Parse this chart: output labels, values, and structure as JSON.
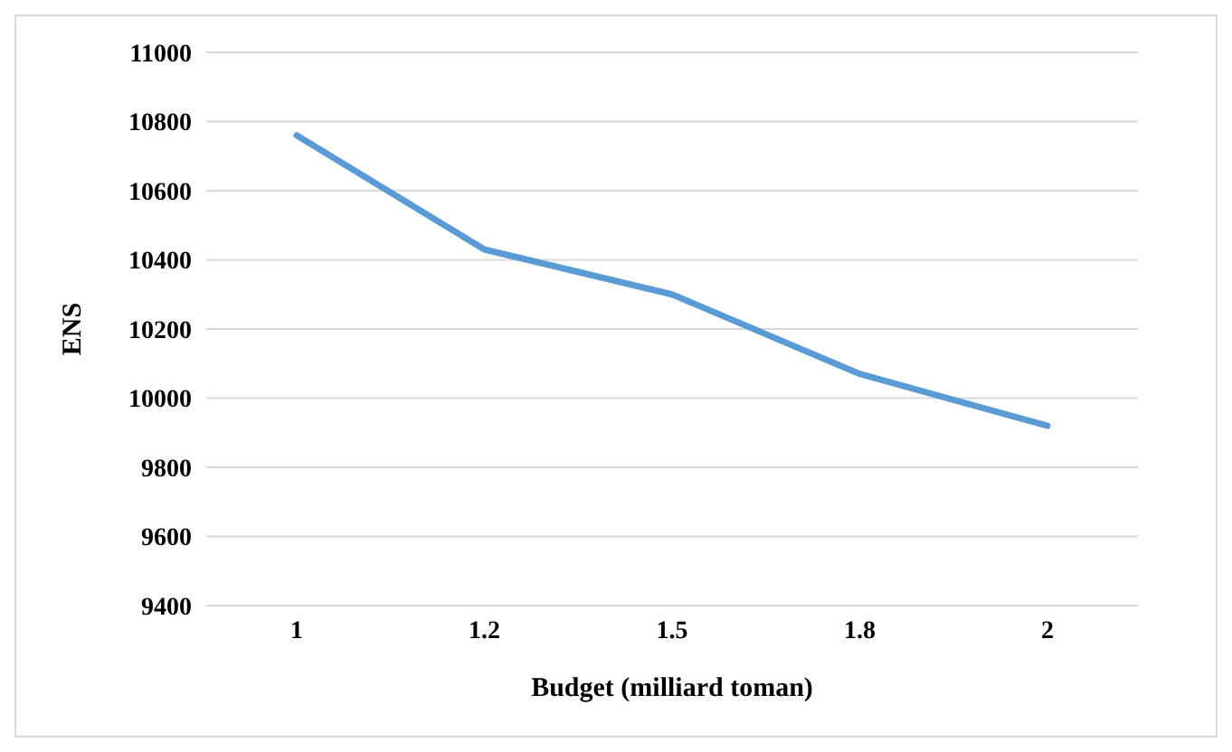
{
  "chart_data": {
    "type": "line",
    "xlabel": "Budget (milliard toman)",
    "ylabel": "ENS",
    "categories": [
      "1",
      "1.2",
      "1.5",
      "1.8",
      "2"
    ],
    "series": [
      {
        "color": "#5b9bd5",
        "values": [
          10760,
          10430,
          10300,
          10070,
          9920
        ]
      }
    ],
    "ylim": [
      9400,
      11000
    ],
    "yticks": [
      9400,
      9600,
      9800,
      10000,
      10200,
      10400,
      10600,
      10800,
      11000
    ],
    "grid": "y",
    "marker": "none",
    "line_style": "solid",
    "legend": false
  }
}
